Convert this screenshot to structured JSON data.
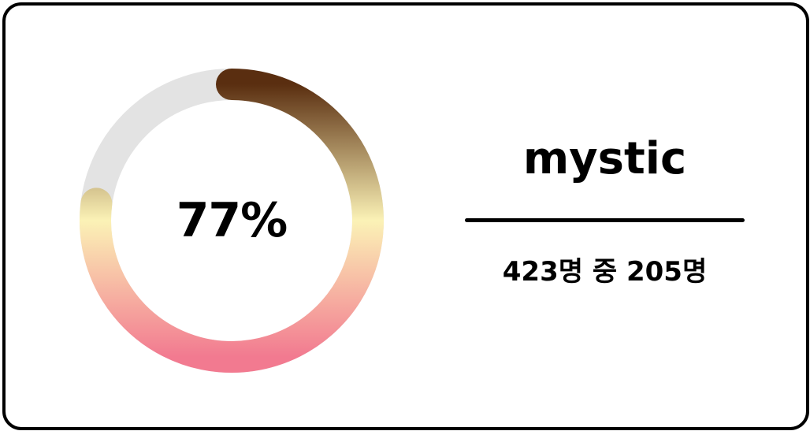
{
  "progress": {
    "fraction": 0.77,
    "label": "77%"
  },
  "info": {
    "name": "mystic",
    "count_text": "423명 중 205명"
  },
  "colors": {
    "track": "#e3e3e3",
    "gradient_top": "#5a2e10",
    "gradient_mid": "#fbf2b6",
    "gradient_bottom": "#f27a90",
    "border": "#000000"
  }
}
